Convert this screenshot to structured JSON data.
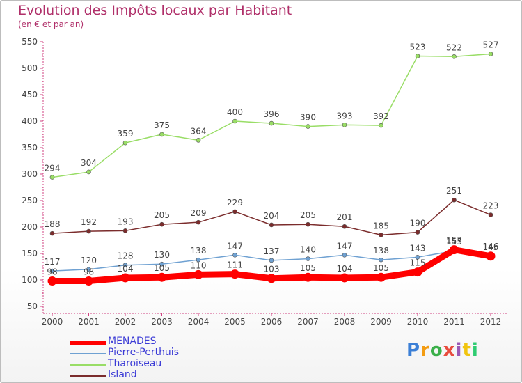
{
  "title": "Evolution des Impôts locaux par Habitant",
  "subtitle": "(en € et par an)",
  "logo": "Proxiti",
  "chart_data": {
    "type": "line",
    "x": [
      "2000",
      "2001",
      "2002",
      "2003",
      "2004",
      "2005",
      "2006",
      "2007",
      "2008",
      "2009",
      "2010",
      "2011",
      "2012"
    ],
    "ylim": [
      50,
      550
    ],
    "yticks": [
      50,
      100,
      150,
      200,
      250,
      300,
      350,
      400,
      450,
      500,
      550
    ],
    "grid": false,
    "legend_position": "bottom-left",
    "series": [
      {
        "name": "MENADES",
        "color": "#ff0000",
        "values": [
          98,
          98,
          104,
          105,
          110,
          111,
          103,
          105,
          104,
          105,
          115,
          157,
          145
        ]
      },
      {
        "name": "Pierre-Perthuis",
        "color": "#6fa1d2",
        "values": [
          117,
          120,
          128,
          130,
          138,
          147,
          137,
          140,
          147,
          138,
          143,
          155,
          146
        ]
      },
      {
        "name": "Tharoiseau",
        "color": "#99dd66",
        "values": [
          294,
          304,
          359,
          375,
          364,
          400,
          396,
          390,
          393,
          392,
          523,
          522,
          527
        ]
      },
      {
        "name": "Island",
        "color": "#7b2c2c",
        "values": [
          188,
          192,
          193,
          205,
          209,
          229,
          204,
          205,
          201,
          185,
          190,
          251,
          223
        ]
      }
    ]
  }
}
